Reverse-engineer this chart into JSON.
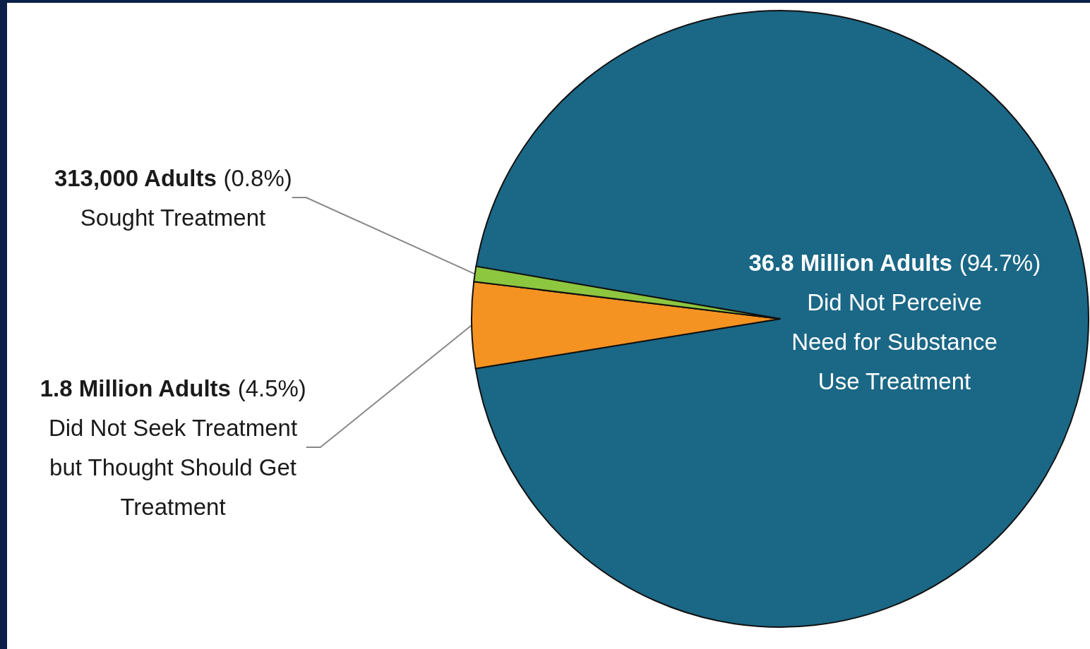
{
  "chart_data": {
    "type": "pie",
    "categories": [
      "Did Not Perceive\nNeed for Substance\nUse Treatment",
      "Did Not Seek Treatment\nbut Thought Should Get\nTreatment",
      "Sought Treatment"
    ],
    "values": [
      94.7,
      4.5,
      0.8
    ],
    "colors": [
      "#1b6786",
      "#f59322",
      "#8dc63f"
    ],
    "value_labels": [
      "36.8 Million Adults (94.7%)",
      "1.8 Million Adults (4.5%)",
      "313,000 Adults (0.8%)"
    ],
    "legend": false
  }
}
